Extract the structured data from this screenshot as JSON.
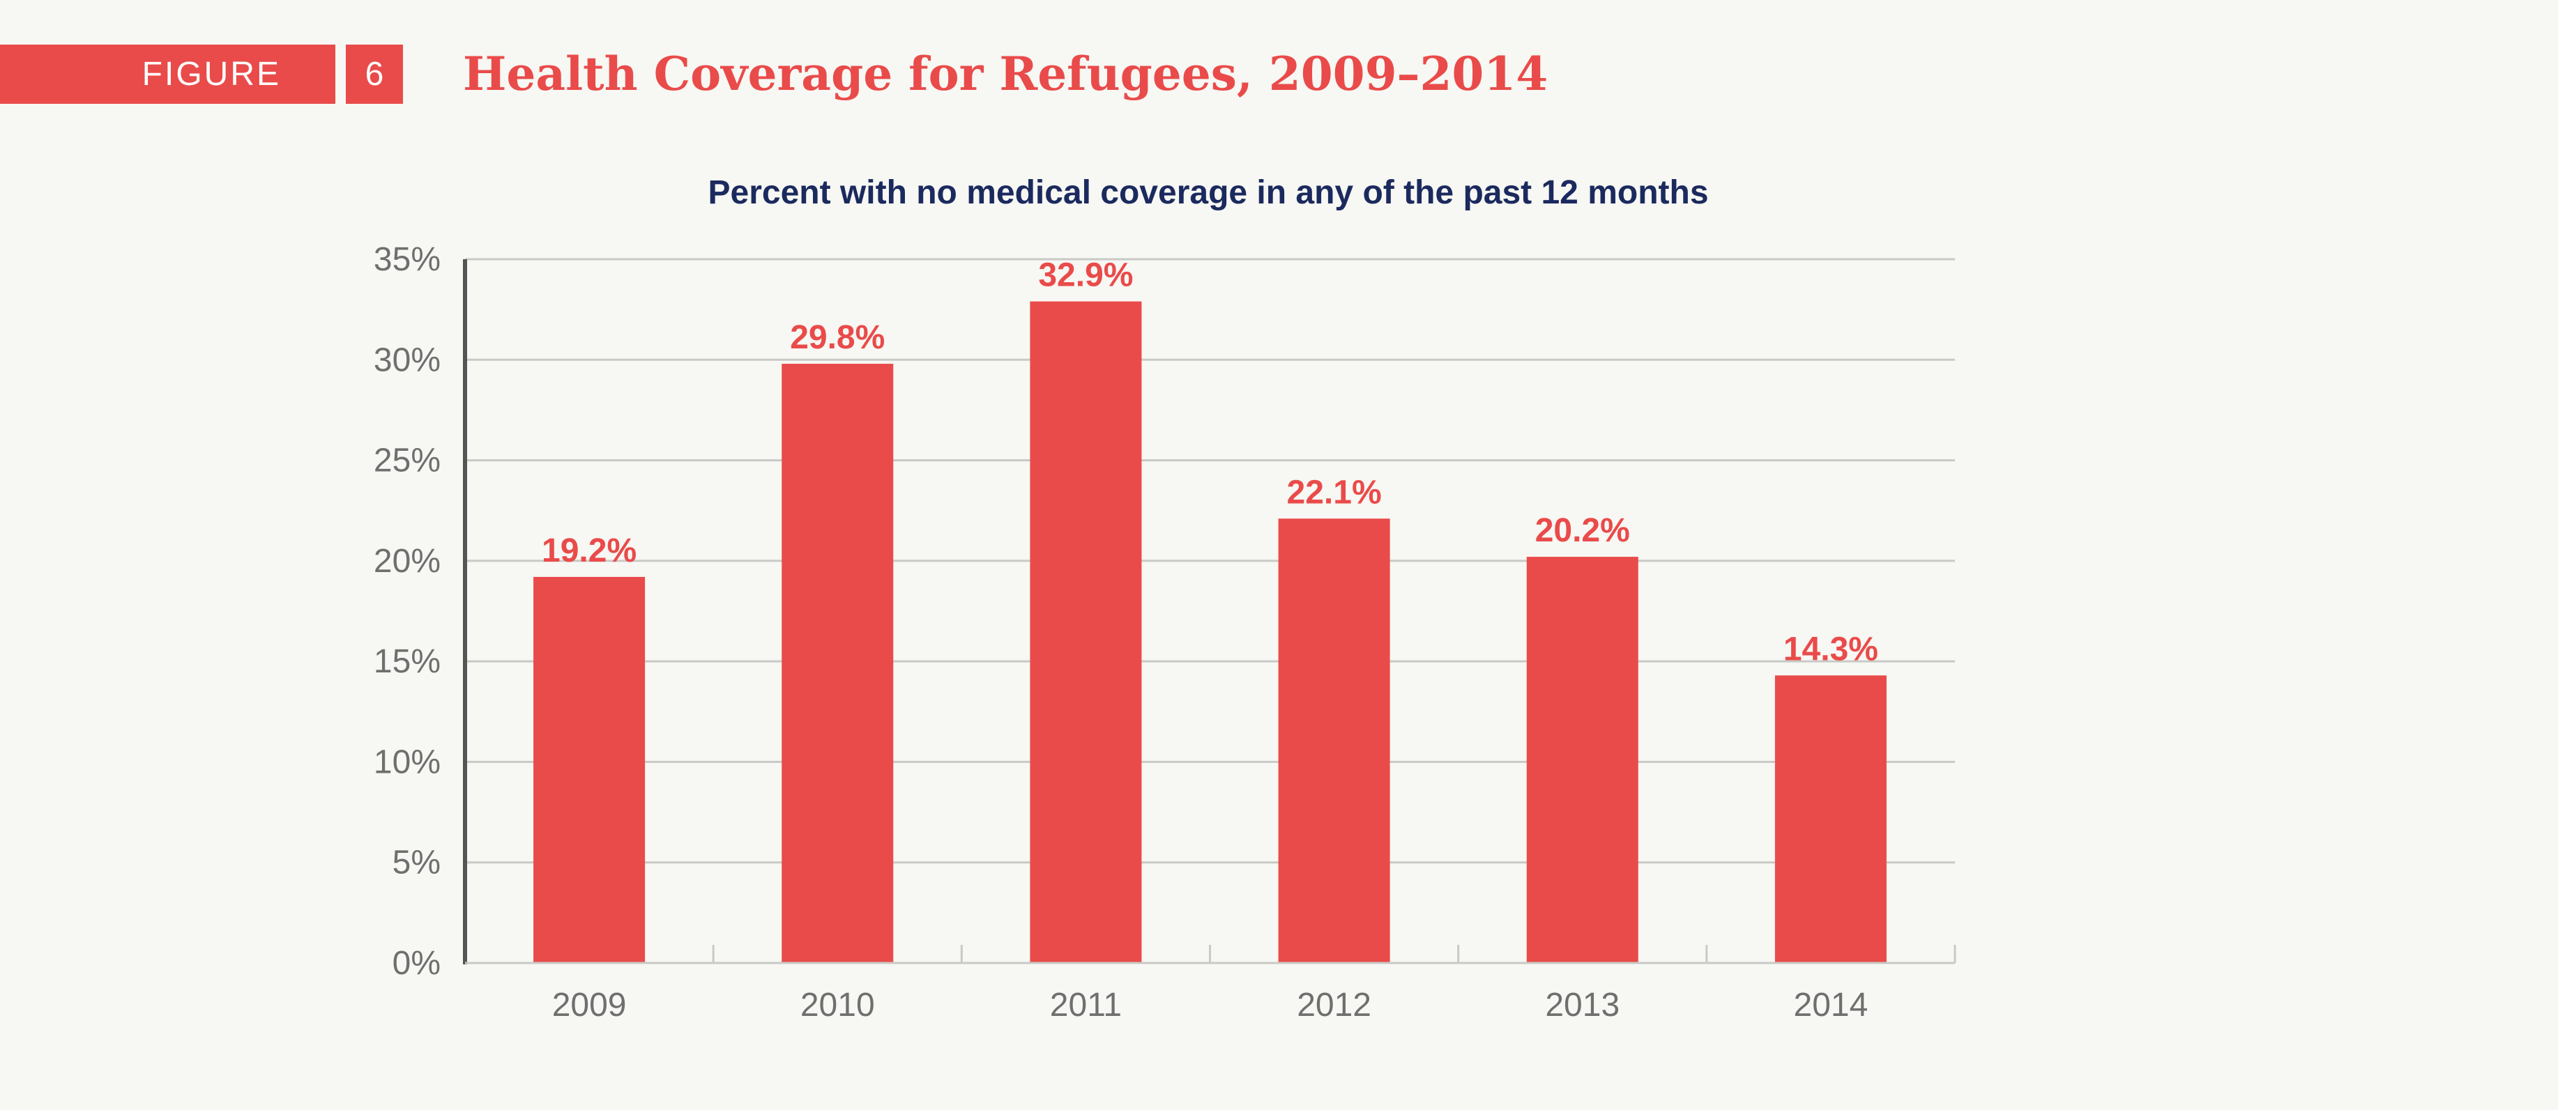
{
  "header": {
    "figure_label": "FIGURE",
    "figure_number": "6",
    "title": "Health Coverage for Refugees, 2009–2014"
  },
  "colors": {
    "accent": "#e94b4a",
    "subtitle": "#1b2a5e",
    "axis_text": "#6f6f6f",
    "grid": "#c9c9c6",
    "axis_line": "#555555",
    "background": "#f7f7f3"
  },
  "chart_data": {
    "type": "bar",
    "subtitle": "Percent with no medical coverage in any of the past 12 months",
    "categories": [
      "2009",
      "2010",
      "2011",
      "2012",
      "2013",
      "2014"
    ],
    "values": [
      19.2,
      29.8,
      32.9,
      22.1,
      20.2,
      14.3
    ],
    "value_labels": [
      "19.2%",
      "29.8%",
      "32.9%",
      "22.1%",
      "20.2%",
      "14.3%"
    ],
    "yticks": [
      "0%",
      "5%",
      "10%",
      "15%",
      "20%",
      "25%",
      "30%",
      "35%"
    ],
    "ylim": [
      0,
      35
    ],
    "grid": true,
    "legend": false
  }
}
